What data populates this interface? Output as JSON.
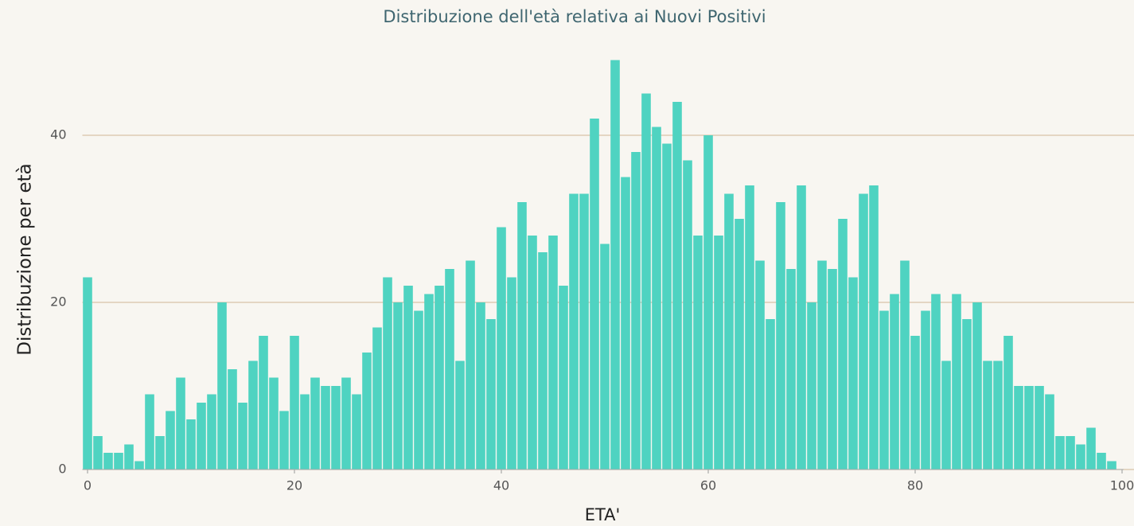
{
  "chart_data": {
    "type": "bar",
    "title": "Distribuzione dell'età relativa ai Nuovi Positivi",
    "x_label": "ETA'",
    "y_label": "Distribuzione per età",
    "x": [
      0,
      1,
      2,
      3,
      4,
      5,
      6,
      7,
      8,
      9,
      10,
      11,
      12,
      13,
      14,
      15,
      16,
      17,
      18,
      19,
      20,
      21,
      22,
      23,
      24,
      25,
      26,
      27,
      28,
      29,
      30,
      31,
      32,
      33,
      34,
      35,
      36,
      37,
      38,
      39,
      40,
      41,
      42,
      43,
      44,
      45,
      46,
      47,
      48,
      49,
      50,
      51,
      52,
      53,
      54,
      55,
      56,
      57,
      58,
      59,
      60,
      61,
      62,
      63,
      64,
      65,
      66,
      67,
      68,
      69,
      70,
      71,
      72,
      73,
      74,
      75,
      76,
      77,
      78,
      79,
      80,
      81,
      82,
      83,
      84,
      85,
      86,
      87,
      88,
      89,
      90,
      91,
      92,
      93,
      94,
      95,
      96,
      97,
      98,
      99
    ],
    "values": [
      23,
      4,
      2,
      2,
      3,
      1,
      9,
      4,
      7,
      11,
      6,
      8,
      9,
      20,
      12,
      8,
      13,
      16,
      11,
      7,
      16,
      9,
      11,
      10,
      10,
      11,
      9,
      14,
      17,
      23,
      20,
      22,
      19,
      21,
      22,
      24,
      13,
      25,
      20,
      18,
      29,
      23,
      32,
      28,
      26,
      28,
      22,
      33,
      33,
      42,
      27,
      49,
      35,
      38,
      45,
      41,
      39,
      44,
      37,
      28,
      40,
      28,
      33,
      30,
      34,
      25,
      18,
      32,
      24,
      34,
      20,
      25,
      24,
      30,
      23,
      33,
      34,
      19,
      21,
      25,
      16,
      19,
      21,
      13,
      21,
      18,
      20,
      13,
      13,
      16,
      10,
      10,
      10,
      9,
      4,
      4,
      3,
      5,
      2,
      1
    ],
    "color": "#4fd3c1",
    "xlim": [
      -0.5,
      100
    ],
    "xticks": [
      0,
      20,
      40,
      60,
      80,
      100
    ],
    "ylim": [
      0,
      50
    ],
    "yticks": [
      0,
      20,
      40
    ],
    "grid": true
  }
}
